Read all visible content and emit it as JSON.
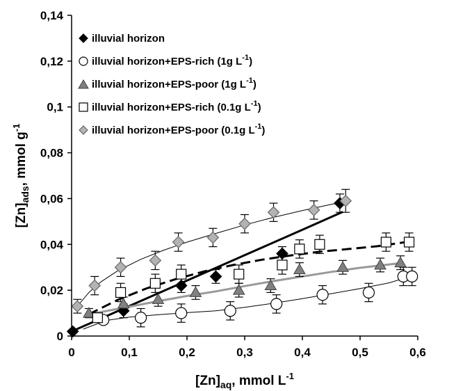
{
  "chart_data": {
    "type": "scatter",
    "xlabel": "[Zn]aq, mmol L-1",
    "xlabel_parts": {
      "main": "[Zn]",
      "sub": "aq",
      "after": ", mmol L",
      "sup": "-1"
    },
    "ylabel": "[Zn]ads, mmol g-1",
    "ylabel_parts": {
      "main": "[Zn]",
      "sub": "ads",
      "after": ", mmol g",
      "sup": "-1"
    },
    "xlim": [
      0,
      0.6
    ],
    "ylim": [
      0,
      0.14
    ],
    "x_ticks": [
      0,
      0.1,
      0.2,
      0.3,
      0.4,
      0.5,
      0.6
    ],
    "x_tick_labels": [
      "0",
      "0,1",
      "0,2",
      "0,3",
      "0,4",
      "0,5",
      "0,6"
    ],
    "y_ticks": [
      0,
      0.02,
      0.04,
      0.06,
      0.08,
      0.1,
      0.12,
      0.14
    ],
    "y_tick_labels": [
      "0",
      "0,02",
      "0,04",
      "0,06",
      "0,08",
      "0,1",
      "0,12",
      "0,14"
    ],
    "grid": false,
    "legend_position": "top-left",
    "series": [
      {
        "name": "illuvial horizon",
        "legend": {
          "main": "illuvial horizon",
          "unit": "",
          "sup": "",
          "close": ""
        },
        "marker": "diamond",
        "fill": "#000000",
        "stroke": "#000000",
        "x": [
          0.002,
          0.09,
          0.19,
          0.25,
          0.365,
          0.465
        ],
        "y": [
          0.002,
          0.011,
          0.022,
          0.026,
          0.036,
          0.058
        ],
        "err": [
          0,
          0.003,
          0.003,
          0.003,
          0.003,
          0.004
        ],
        "fit": {
          "style": "thick-solid",
          "color": "#000000",
          "width": 3,
          "x": [
            0.0,
            0.1,
            0.2,
            0.3,
            0.4,
            0.47
          ],
          "y": [
            0.002,
            0.0131,
            0.0242,
            0.0353,
            0.0464,
            0.0542
          ]
        }
      },
      {
        "name": "illuvial horizon+EPS-rich (1g L-1)",
        "legend": {
          "main": "illuvial horizon+EPS-rich (1g L",
          "unit": "",
          "sup": "-1",
          "close": ")"
        },
        "marker": "circle",
        "fill": "#ffffff",
        "stroke": "#000000",
        "x": [
          0.055,
          0.12,
          0.19,
          0.275,
          0.355,
          0.435,
          0.515,
          0.575,
          0.59
        ],
        "y": [
          0.007,
          0.008,
          0.01,
          0.011,
          0.014,
          0.018,
          0.019,
          0.026,
          0.026
        ],
        "err": [
          0,
          0.004,
          0.004,
          0.004,
          0.004,
          0.004,
          0.004,
          0.004,
          0.004
        ],
        "fit": {
          "style": "thin-solid",
          "color": "#000000",
          "width": 1,
          "x": [
            0.02,
            0.06,
            0.1,
            0.15,
            0.2,
            0.25,
            0.3,
            0.35,
            0.4,
            0.45,
            0.5,
            0.55,
            0.59
          ],
          "y": [
            0.003,
            0.0068,
            0.0083,
            0.0093,
            0.0102,
            0.011,
            0.0125,
            0.0143,
            0.0163,
            0.0185,
            0.0207,
            0.0232,
            0.0262
          ]
        }
      },
      {
        "name": "illuvial horizon+EPS-poor (1g L-1)",
        "legend": {
          "main": "illuvial horizon+EPS-poor (1g L",
          "unit": "",
          "sup": "-1",
          "close": ")"
        },
        "marker": "triangle",
        "fill": "#808080",
        "stroke": "#404040",
        "x": [
          0.03,
          0.09,
          0.15,
          0.215,
          0.29,
          0.345,
          0.395,
          0.47,
          0.535,
          0.57
        ],
        "y": [
          0.01,
          0.014,
          0.016,
          0.019,
          0.02,
          0.022,
          0.029,
          0.03,
          0.031,
          0.032
        ],
        "err": [
          0.002,
          0.003,
          0.003,
          0.003,
          0.003,
          0.003,
          0.003,
          0.003,
          0.003,
          0.003
        ],
        "fit": {
          "style": "gray-solid",
          "color": "#999999",
          "width": 3,
          "x": [
            0.03,
            0.1,
            0.15,
            0.2,
            0.25,
            0.3,
            0.35,
            0.4,
            0.45,
            0.5,
            0.57
          ],
          "y": [
            0.0095,
            0.0128,
            0.0152,
            0.0175,
            0.0195,
            0.0218,
            0.024,
            0.026,
            0.028,
            0.0298,
            0.0318
          ]
        }
      },
      {
        "name": "illuvial horizon+EPS-rich (0.1g L-1)",
        "legend": {
          "main": "illuvial horizon+EPS-rich (0.1g L",
          "unit": "",
          "sup": "-1",
          "close": ")"
        },
        "marker": "square",
        "fill": "#ffffff",
        "stroke": "#000000",
        "x": [
          0.045,
          0.085,
          0.145,
          0.19,
          0.29,
          0.365,
          0.395,
          0.43,
          0.545,
          0.585
        ],
        "y": [
          0.008,
          0.019,
          0.023,
          0.027,
          0.027,
          0.031,
          0.038,
          0.04,
          0.041,
          0.041
        ],
        "err": [
          0,
          0.004,
          0.004,
          0.004,
          0.004,
          0.004,
          0.004,
          0.004,
          0.004,
          0.004
        ],
        "fit": {
          "style": "dashed",
          "color": "#000000",
          "width": 3,
          "x": [
            0.03,
            0.08,
            0.13,
            0.18,
            0.23,
            0.28,
            0.33,
            0.38,
            0.43,
            0.48,
            0.53,
            0.585
          ],
          "y": [
            0.0095,
            0.0158,
            0.0208,
            0.0248,
            0.0282,
            0.031,
            0.0333,
            0.0352,
            0.0368,
            0.038,
            0.0392,
            0.0412
          ]
        }
      },
      {
        "name": "illuvial horizon+EPS-poor (0.1g L-1)",
        "legend": {
          "main": "illuvial horizon+EPS-poor (0.1g L",
          "unit": "",
          "sup": "-1",
          "close": ")"
        },
        "marker": "diamond",
        "fill": "#b3b3b3",
        "stroke": "#666666",
        "x": [
          0.01,
          0.04,
          0.085,
          0.145,
          0.185,
          0.245,
          0.3,
          0.35,
          0.42,
          0.475
        ],
        "y": [
          0.013,
          0.022,
          0.03,
          0.033,
          0.041,
          0.043,
          0.049,
          0.054,
          0.055,
          0.059
        ],
        "err": [
          0.003,
          0.004,
          0.004,
          0.004,
          0.004,
          0.004,
          0.004,
          0.004,
          0.004,
          0.005
        ],
        "fit": {
          "style": "thin-solid",
          "color": "#000000",
          "width": 1,
          "x": [
            0.01,
            0.03,
            0.05,
            0.08,
            0.12,
            0.16,
            0.2,
            0.25,
            0.3,
            0.35,
            0.4,
            0.45,
            0.48
          ],
          "y": [
            0.013,
            0.019,
            0.0235,
            0.0285,
            0.0335,
            0.0375,
            0.041,
            0.0448,
            0.0485,
            0.0518,
            0.0548,
            0.0575,
            0.059
          ]
        }
      }
    ]
  }
}
